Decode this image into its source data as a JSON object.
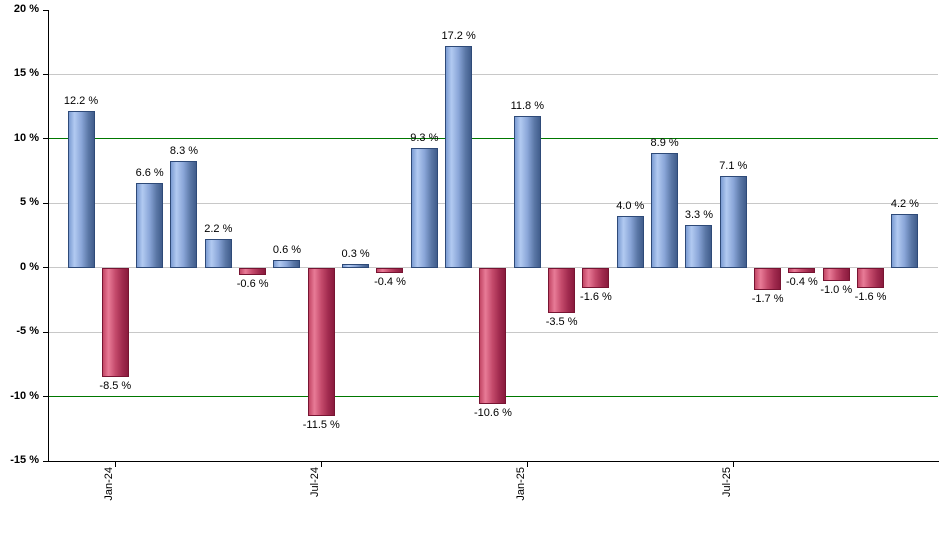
{
  "chart_data": {
    "type": "bar",
    "title": "",
    "xlabel": "",
    "ylabel": "",
    "ylim": [
      -15,
      20
    ],
    "grid": true,
    "legend": false,
    "values": [
      12.2,
      -8.5,
      6.6,
      8.3,
      2.2,
      -0.6,
      0.6,
      -11.5,
      0.3,
      -0.4,
      9.3,
      17.2,
      -10.6,
      11.8,
      -3.5,
      -1.6,
      4.0,
      8.9,
      3.3,
      7.1,
      -1.7,
      -0.4,
      -1.0,
      -1.6,
      4.2
    ],
    "value_labels": [
      "12.2 %",
      "-8.5 %",
      "6.6 %",
      "8.3 %",
      "2.2 %",
      "-0.6 %",
      "0.6 %",
      "-11.5 %",
      "0.3 %",
      "-0.4 %",
      "9.3 %",
      "17.2 %",
      "-10.6 %",
      "11.8 %",
      "-3.5 %",
      "-1.6 %",
      "4.0 %",
      "8.9 %",
      "3.3 %",
      "7.1 %",
      "-1.7 %",
      "-0.4 %",
      "-1.0 %",
      "-1.6 %",
      "4.2 %"
    ],
    "x_tick_labels": [
      {
        "index": 1,
        "label": "Jan-24"
      },
      {
        "index": 7,
        "label": "Jul-24"
      },
      {
        "index": 13,
        "label": "Jan-25"
      },
      {
        "index": 19,
        "label": "Jul-25"
      }
    ],
    "y_ticks": [
      {
        "value": 20,
        "label": "20 %"
      },
      {
        "value": 15,
        "label": "15 %"
      },
      {
        "value": 10,
        "label": "10 %"
      },
      {
        "value": 5,
        "label": "5 %"
      },
      {
        "value": 0,
        "label": "0 %"
      },
      {
        "value": -5,
        "label": "-5 %"
      },
      {
        "value": -10,
        "label": "-10 %"
      },
      {
        "value": -15,
        "label": "-15 %"
      }
    ],
    "gray_gridline_values": [
      15,
      5,
      0,
      -5
    ],
    "green_threshold_values": [
      10,
      -10
    ]
  },
  "style": {
    "background": "#ffffff",
    "axis_color": "#000000",
    "gridline_color": "#c8c8c8",
    "threshold_color": "#007800",
    "label_color": "#000000",
    "positive_bar": {
      "border": "#2e4a78",
      "gradient": [
        "#7b9cd3",
        "#b2caf1",
        "#8aa6d8",
        "#5a77a6",
        "#415d8c"
      ]
    },
    "negative_bar": {
      "border": "#771432",
      "gradient": [
        "#c34766",
        "#e87b97",
        "#c44a6b",
        "#a02a4e",
        "#8a1b3d"
      ]
    }
  }
}
